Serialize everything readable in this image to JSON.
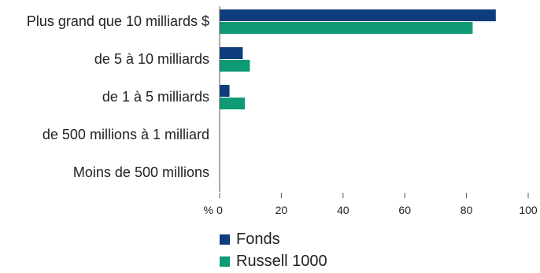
{
  "chart_data": {
    "type": "bar",
    "orientation": "horizontal",
    "categories": [
      "Plus grand que 10 milliards $",
      "de 5 à 10 milliards",
      "de 1 à 5 milliards",
      "de 500 millions à 1 milliard",
      "Moins de 500 millions"
    ],
    "series": [
      {
        "name": "Fonds",
        "color": "#0f3c7c",
        "values": [
          89.5,
          7.5,
          3.2,
          0,
          0
        ]
      },
      {
        "name": "Russell 1000",
        "color": "#0f9a76",
        "values": [
          82,
          9.8,
          8.2,
          0,
          0
        ]
      }
    ],
    "x_unit": "%",
    "xlim": [
      0,
      100
    ],
    "x_ticks": [
      0,
      20,
      40,
      60,
      80,
      100
    ],
    "grid": false,
    "legend_position": "bottom"
  }
}
